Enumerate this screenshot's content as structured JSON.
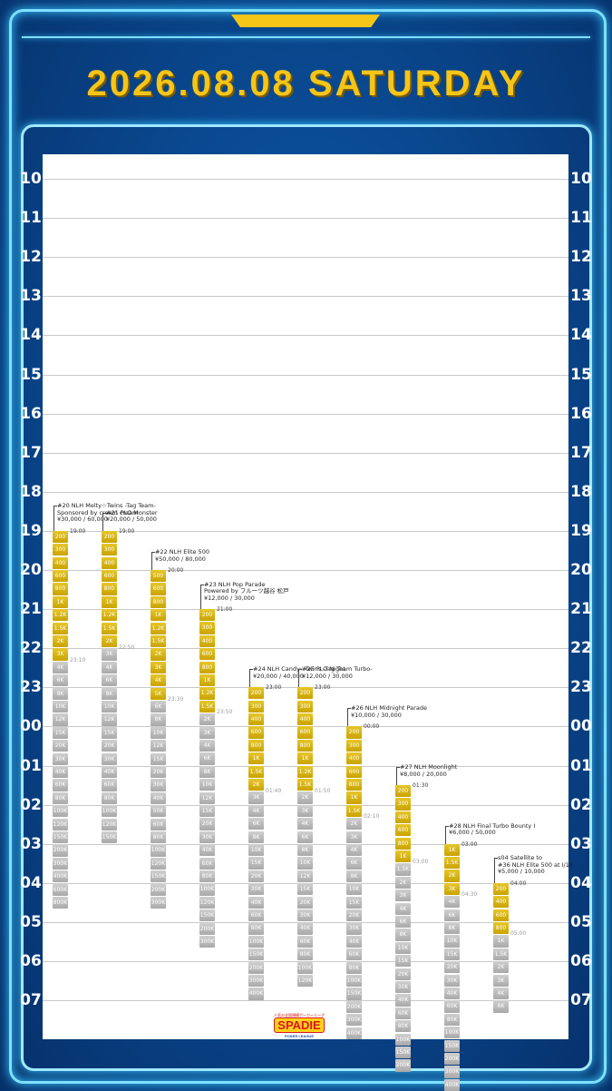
{
  "header": {
    "date_title": "2026.08.08 SATURDAY"
  },
  "hours": [
    "10",
    "11",
    "12",
    "13",
    "14",
    "15",
    "16",
    "17",
    "18",
    "19",
    "20",
    "21",
    "22",
    "23",
    "00",
    "01",
    "02",
    "03",
    "04",
    "05",
    "06",
    "07"
  ],
  "logo": {
    "top": "人気の全国規模ポーカーリーグ",
    "main": "SPADIE",
    "sub": "POKER LEAGUE"
  },
  "events": [
    {
      "title": [
        "#20 NLH Melty☆Twins -Tag Team-",
        "Sponsored by cream cream",
        "¥30,000 / 60,000"
      ],
      "start": "19:00",
      "late": "23:10",
      "levels": [
        "200",
        "300",
        "400",
        "600",
        "800",
        "1K",
        "1.2K",
        "1.5K",
        "2K",
        "3K",
        "4K",
        "6K",
        "8K",
        "10K",
        "12K",
        "15K",
        "20K",
        "30K",
        "40K",
        "60K",
        "80K",
        "100K",
        "120K",
        "150K",
        "200K",
        "300K",
        "400K",
        "600K",
        "800K"
      ],
      "yellow": 10
    },
    {
      "title": [
        "#21 PLO Monster",
        "¥20,000 / 50,000"
      ],
      "start": "19:00",
      "late": "22:50",
      "levels": [
        "200",
        "300",
        "400",
        "600",
        "800",
        "1K",
        "1.2K",
        "1.5K",
        "2K",
        "3K",
        "4K",
        "6K",
        "8K",
        "10K",
        "12K",
        "15K",
        "20K",
        "30K",
        "40K",
        "60K",
        "80K",
        "100K",
        "120K",
        "150K"
      ],
      "yellow": 9
    },
    {
      "title": [
        "#22 NLH Elite 500",
        "¥50,000 / 80,000"
      ],
      "start": "20:00",
      "late": "23:30",
      "levels": [
        "500",
        "600",
        "800",
        "1K",
        "1.2K",
        "1.5K",
        "2K",
        "3K",
        "4K",
        "5K",
        "6K",
        "8K",
        "10K",
        "12K",
        "15K",
        "20K",
        "30K",
        "40K",
        "50K",
        "60K",
        "80K",
        "100K",
        "120K",
        "150K",
        "200K",
        "300K"
      ],
      "yellow": 10
    },
    {
      "title": [
        "#23 NLH Pop Parade",
        "Powered by フルーツ越谷 松戸",
        "¥12,000 / 30,000"
      ],
      "start": "21:00",
      "late": "23:50",
      "levels": [
        "200",
        "300",
        "400",
        "600",
        "800",
        "1K",
        "1.2K",
        "1.5K",
        "2K",
        "3K",
        "4K",
        "6K",
        "8K",
        "10K",
        "12K",
        "15K",
        "20K",
        "30K",
        "40K",
        "60K",
        "80K",
        "100K",
        "120K",
        "150K",
        "200K",
        "300K"
      ],
      "yellow": 8
    },
    {
      "title": [
        "#24 NLH Candy☆Twins -Tag Team Turbo-",
        "¥20,000 / 40,000"
      ],
      "start": "23:00",
      "late": "01:40",
      "levels": [
        "200",
        "300",
        "400",
        "600",
        "800",
        "1K",
        "1.5K",
        "2K",
        "3K",
        "4K",
        "6K",
        "8K",
        "10K",
        "15K",
        "20K",
        "30K",
        "40K",
        "60K",
        "80K",
        "100K",
        "150K",
        "200K",
        "300K",
        "400K"
      ],
      "yellow": 8
    },
    {
      "title": [
        "#25 PLO Night",
        "¥12,000 / 30,000"
      ],
      "start": "23:00",
      "late": "01:50",
      "levels": [
        "200",
        "300",
        "400",
        "600",
        "800",
        "1K",
        "1.2K",
        "1.5K",
        "2K",
        "3K",
        "4K",
        "6K",
        "8K",
        "10K",
        "12K",
        "15K",
        "20K",
        "30K",
        "40K",
        "60K",
        "80K",
        "100K",
        "120K"
      ],
      "yellow": 8
    },
    {
      "title": [
        "#26 NLH Midnight Parade",
        "¥10,000 / 30,000"
      ],
      "start": "00:00",
      "late": "02:10",
      "levels": [
        "200",
        "300",
        "400",
        "600",
        "800",
        "1K",
        "1.5K",
        "2K",
        "3K",
        "4K",
        "6K",
        "8K",
        "10K",
        "15K",
        "20K",
        "30K",
        "40K",
        "60K",
        "80K",
        "100K",
        "150K",
        "200K",
        "300K",
        "400K"
      ],
      "yellow": 7
    },
    {
      "title": [
        "#27 NLH Moonlight",
        "¥8,000 / 20,000"
      ],
      "start": "01:30",
      "late": "03:00",
      "levels": [
        "200",
        "300",
        "400",
        "600",
        "800",
        "1K",
        "1.5K",
        "2K",
        "3K",
        "4K",
        "6K",
        "8K",
        "10K",
        "15K",
        "20K",
        "30K",
        "40K",
        "60K",
        "80K",
        "100K",
        "150K",
        "200K"
      ],
      "yellow": 6
    },
    {
      "title": [
        "#28 NLH Final Turbo Bounty I",
        "¥6,000 / 50,000"
      ],
      "start": "03:00",
      "late": "04:30",
      "levels": [
        "1K",
        "1.5K",
        "2K",
        "3K",
        "4K",
        "6K",
        "8K",
        "10K",
        "15K",
        "20K",
        "30K",
        "40K",
        "60K",
        "80K",
        "100K",
        "150K",
        "200K",
        "300K",
        "400K"
      ],
      "yellow": 4
    },
    {
      "title": [
        "s04 Satellite to",
        "#36 NLH Elite 500 at I/12",
        "¥5,000 / 10,000"
      ],
      "start": "04:00",
      "late": "05:00",
      "levels": [
        "200",
        "400",
        "600",
        "800",
        "1K",
        "1.5K",
        "2K",
        "3K",
        "4K",
        "6K"
      ],
      "yellow": 4
    }
  ]
}
